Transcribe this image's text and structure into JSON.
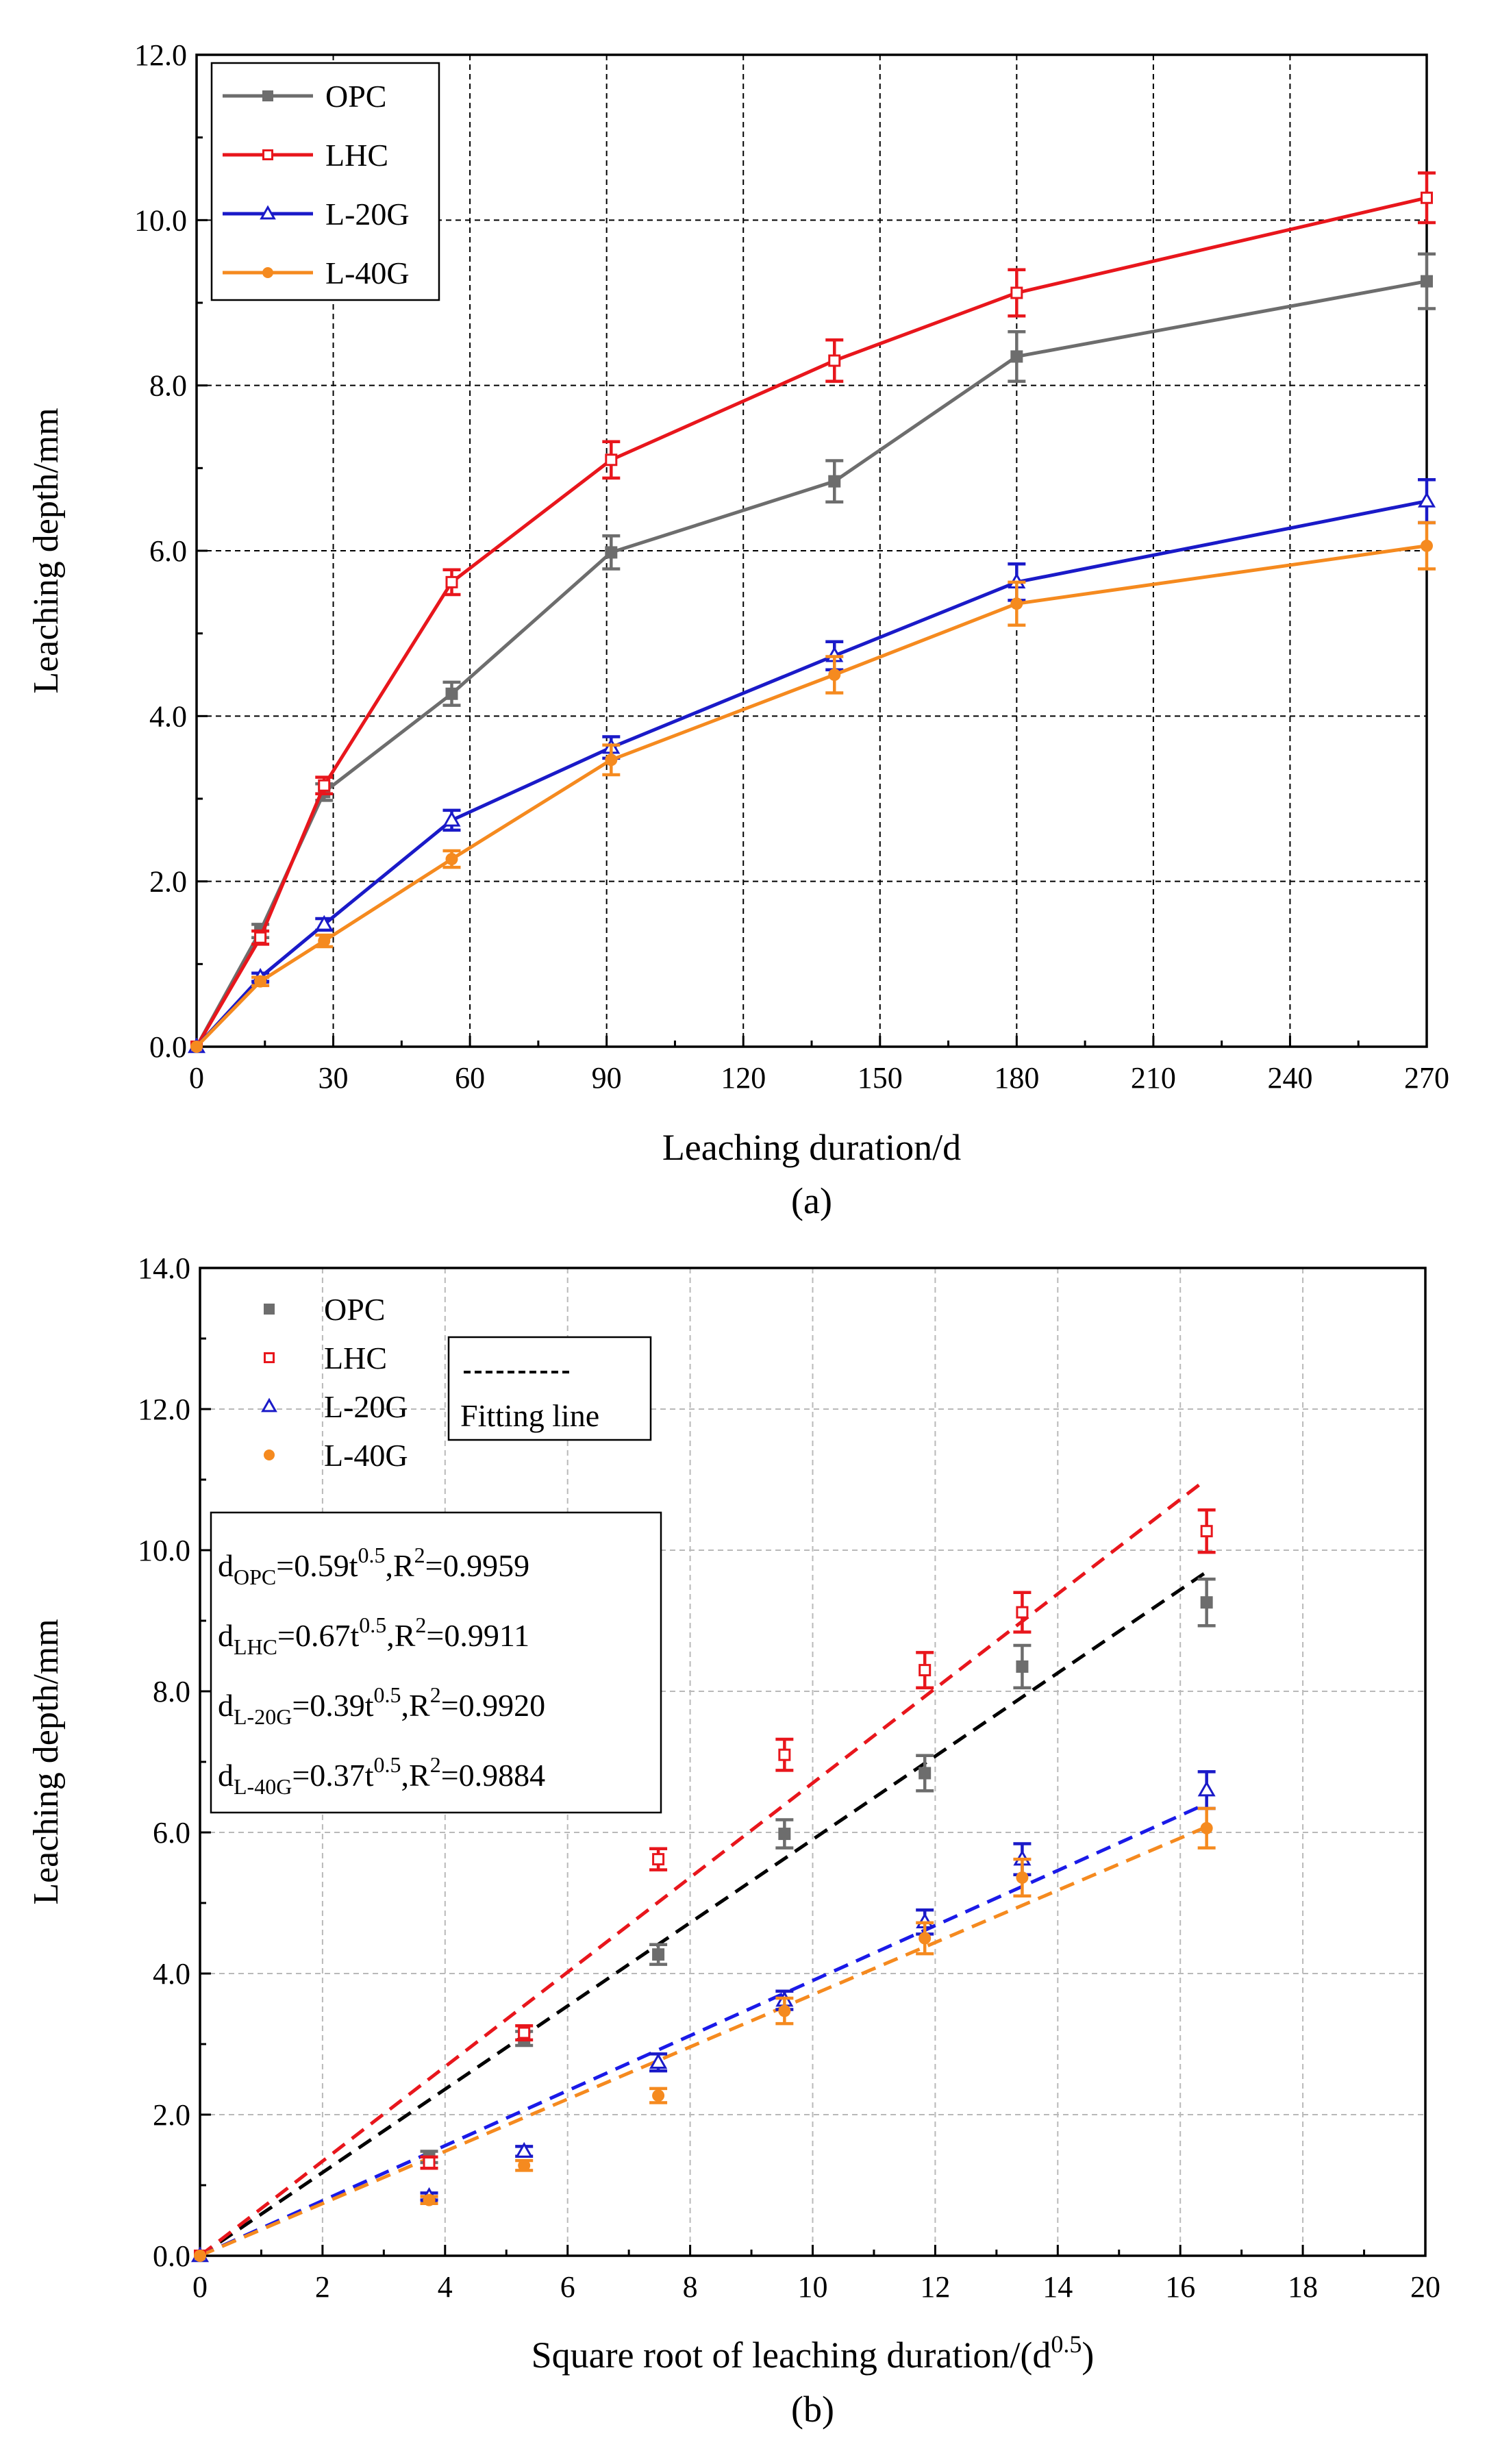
{
  "chart_data": [
    {
      "type": "line",
      "panel_label": "(a)",
      "xlabel": "Leaching duration/d",
      "ylabel": "Leaching depth/mm",
      "xlim": [
        0,
        270
      ],
      "ylim": [
        0,
        12
      ],
      "x_ticks": [
        0,
        30,
        60,
        90,
        120,
        150,
        180,
        210,
        240,
        270
      ],
      "x_tick_labels": [
        "0",
        "30",
        "60",
        "90",
        "120",
        "150",
        "180",
        "210",
        "240",
        "270"
      ],
      "y_ticks": [
        0,
        2,
        4,
        6,
        8,
        10,
        12
      ],
      "y_tick_labels": [
        "0.0",
        "2.0",
        "4.0",
        "6.0",
        "8.0",
        "10.0",
        "12.0"
      ],
      "grid": true,
      "legend_position": "top-left",
      "x": [
        0,
        14,
        28,
        56,
        91,
        140,
        180,
        270
      ],
      "series": [
        {
          "name": "OPC",
          "color": "#6d6d6d",
          "marker": "filled-square",
          "values": [
            0,
            1.4,
            3.08,
            4.27,
            5.98,
            6.84,
            8.35,
            9.26
          ],
          "errors": [
            0,
            0.08,
            0.1,
            0.14,
            0.2,
            0.25,
            0.3,
            0.33
          ]
        },
        {
          "name": "LHC",
          "color": "#e8161c",
          "marker": "open-square",
          "values": [
            0,
            1.32,
            3.16,
            5.62,
            7.1,
            8.3,
            9.12,
            10.27
          ],
          "errors": [
            0,
            0.08,
            0.1,
            0.15,
            0.22,
            0.25,
            0.28,
            0.3
          ]
        },
        {
          "name": "L-20G",
          "color": "#1a1ac8",
          "marker": "open-triangle",
          "values": [
            0,
            0.84,
            1.48,
            2.74,
            3.62,
            4.73,
            5.62,
            6.6
          ],
          "errors": [
            0,
            0.05,
            0.07,
            0.12,
            0.13,
            0.17,
            0.22,
            0.26
          ]
        },
        {
          "name": "L-40G",
          "color": "#f58a1f",
          "marker": "filled-circle",
          "values": [
            0,
            0.79,
            1.28,
            2.27,
            3.47,
            4.5,
            5.36,
            6.06
          ],
          "errors": [
            0,
            0.05,
            0.07,
            0.1,
            0.18,
            0.22,
            0.26,
            0.28
          ]
        }
      ]
    },
    {
      "type": "scatter",
      "panel_label": "(b)",
      "xlabel_main": "Square root of leaching duration/(d",
      "xlabel_sup": "0.5",
      "xlabel_close": ")",
      "ylabel": "Leaching depth/mm",
      "xlim": [
        0,
        20
      ],
      "ylim": [
        0,
        14
      ],
      "x_ticks": [
        0,
        2,
        4,
        6,
        8,
        10,
        12,
        14,
        16,
        18,
        20
      ],
      "x_tick_labels": [
        "0",
        "2",
        "4",
        "6",
        "8",
        "10",
        "12",
        "14",
        "16",
        "18",
        "20"
      ],
      "y_ticks": [
        0,
        2,
        4,
        6,
        8,
        10,
        12,
        14
      ],
      "y_tick_labels": [
        "0.0",
        "2.0",
        "4.0",
        "6.0",
        "8.0",
        "10.0",
        "12.0",
        "14.0"
      ],
      "grid": true,
      "legend_position": "top-left",
      "fit_legend_label": "Fitting line",
      "fit_x_range": [
        0,
        16.4
      ],
      "x": [
        0,
        3.74,
        5.29,
        7.48,
        9.54,
        11.83,
        13.42,
        16.43
      ],
      "series": [
        {
          "name": "OPC",
          "color": "#6d6d6d",
          "marker": "filled-square",
          "fit_color": "#000000",
          "fit_slope": 0.59,
          "fit_r2": "0.9959",
          "eq_sub": "OPC",
          "eq_coef": "=0.59t",
          "eq_exp": "0.5",
          "eq_r2": ",R",
          "eq_r2_exp": "2",
          "eq_r2_val": "=0.9959",
          "values": [
            0,
            1.4,
            3.08,
            4.27,
            5.98,
            6.84,
            8.35,
            9.26
          ],
          "errors": [
            0,
            0.08,
            0.1,
            0.14,
            0.2,
            0.25,
            0.3,
            0.33
          ]
        },
        {
          "name": "LHC",
          "color": "#e8161c",
          "marker": "open-square",
          "fit_color": "#e8161c",
          "fit_slope": 0.67,
          "fit_r2": "0.9911",
          "eq_sub": "LHC",
          "eq_coef": "=0.67t",
          "eq_exp": "0.5",
          "eq_r2": ",R",
          "eq_r2_exp": "2",
          "eq_r2_val": "=0.9911",
          "values": [
            0,
            1.32,
            3.16,
            5.62,
            7.1,
            8.3,
            9.12,
            10.27
          ],
          "errors": [
            0,
            0.08,
            0.1,
            0.15,
            0.22,
            0.25,
            0.28,
            0.3
          ]
        },
        {
          "name": "L-20G",
          "color": "#1a1ac8",
          "marker": "open-triangle",
          "fit_color": "#1a1ae8",
          "fit_slope": 0.39,
          "fit_r2": "0.9920",
          "eq_sub": "L-20G",
          "eq_coef": "=0.39t",
          "eq_exp": "0.5",
          "eq_r2": ",R",
          "eq_r2_exp": "2",
          "eq_r2_val": "=0.9920",
          "values": [
            0,
            0.84,
            1.48,
            2.74,
            3.62,
            4.73,
            5.62,
            6.6
          ],
          "errors": [
            0,
            0.05,
            0.07,
            0.12,
            0.13,
            0.17,
            0.22,
            0.26
          ]
        },
        {
          "name": "L-40G",
          "color": "#f58a1f",
          "marker": "filled-circle",
          "fit_color": "#f58a1f",
          "fit_slope": 0.37,
          "fit_r2": "0.9884",
          "eq_sub": "L-40G",
          "eq_coef": "=0.37t",
          "eq_exp": "0.5",
          "eq_r2": ",R",
          "eq_r2_exp": "2",
          "eq_r2_val": "=0.9884",
          "values": [
            0,
            0.79,
            1.28,
            2.27,
            3.47,
            4.5,
            5.36,
            6.06
          ],
          "errors": [
            0,
            0.05,
            0.07,
            0.1,
            0.18,
            0.22,
            0.26,
            0.28
          ]
        }
      ],
      "equation_prefix": "d"
    }
  ]
}
